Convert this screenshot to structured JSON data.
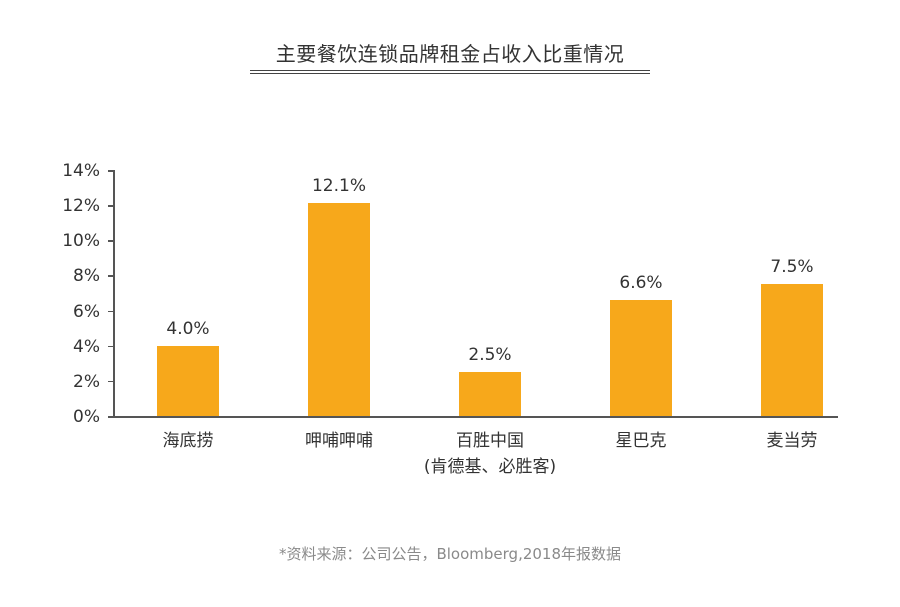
{
  "title": "主要餐饮连锁品牌租金占收入比重情况",
  "source_note": "*资料来源：公司公告，Bloomberg,2018年报数据",
  "colors": {
    "bar": "#F7A81B",
    "axis": "#555555",
    "text": "#333333",
    "source_text": "#8A8A8A"
  },
  "y_axis": {
    "ticks": [
      "0%",
      "2%",
      "4%",
      "6%",
      "8%",
      "10%",
      "12%",
      "14%"
    ]
  },
  "bars": [
    {
      "category": "海底捞",
      "category_line2": "",
      "value": 4.0,
      "label": "4.0%"
    },
    {
      "category": "呷哺呷哺",
      "category_line2": "",
      "value": 12.1,
      "label": "12.1%"
    },
    {
      "category": "百胜中国",
      "category_line2": "(肯德基、必胜客)",
      "value": 2.5,
      "label": "2.5%"
    },
    {
      "category": "星巴克",
      "category_line2": "",
      "value": 6.6,
      "label": "6.6%"
    },
    {
      "category": "麦当劳",
      "category_line2": "",
      "value": 7.5,
      "label": "7.5%"
    }
  ],
  "chart_data": {
    "type": "bar",
    "title": "主要餐饮连锁品牌租金占收入比重情况",
    "categories": [
      "海底捞",
      "呷哺呷哺",
      "百胜中国(肯德基、必胜客)",
      "星巴克",
      "麦当劳"
    ],
    "values": [
      4.0,
      12.1,
      2.5,
      6.6,
      7.5
    ],
    "value_labels": [
      "4.0%",
      "12.1%",
      "2.5%",
      "6.6%",
      "7.5%"
    ],
    "xlabel": "",
    "ylabel": "",
    "ylim": [
      0,
      14
    ],
    "yticks": [
      "0%",
      "2%",
      "4%",
      "6%",
      "8%",
      "10%",
      "12%",
      "14%"
    ],
    "grid": false,
    "legend": null,
    "annotations": [
      "*资料来源：公司公告，Bloomberg,2018年报数据"
    ]
  }
}
